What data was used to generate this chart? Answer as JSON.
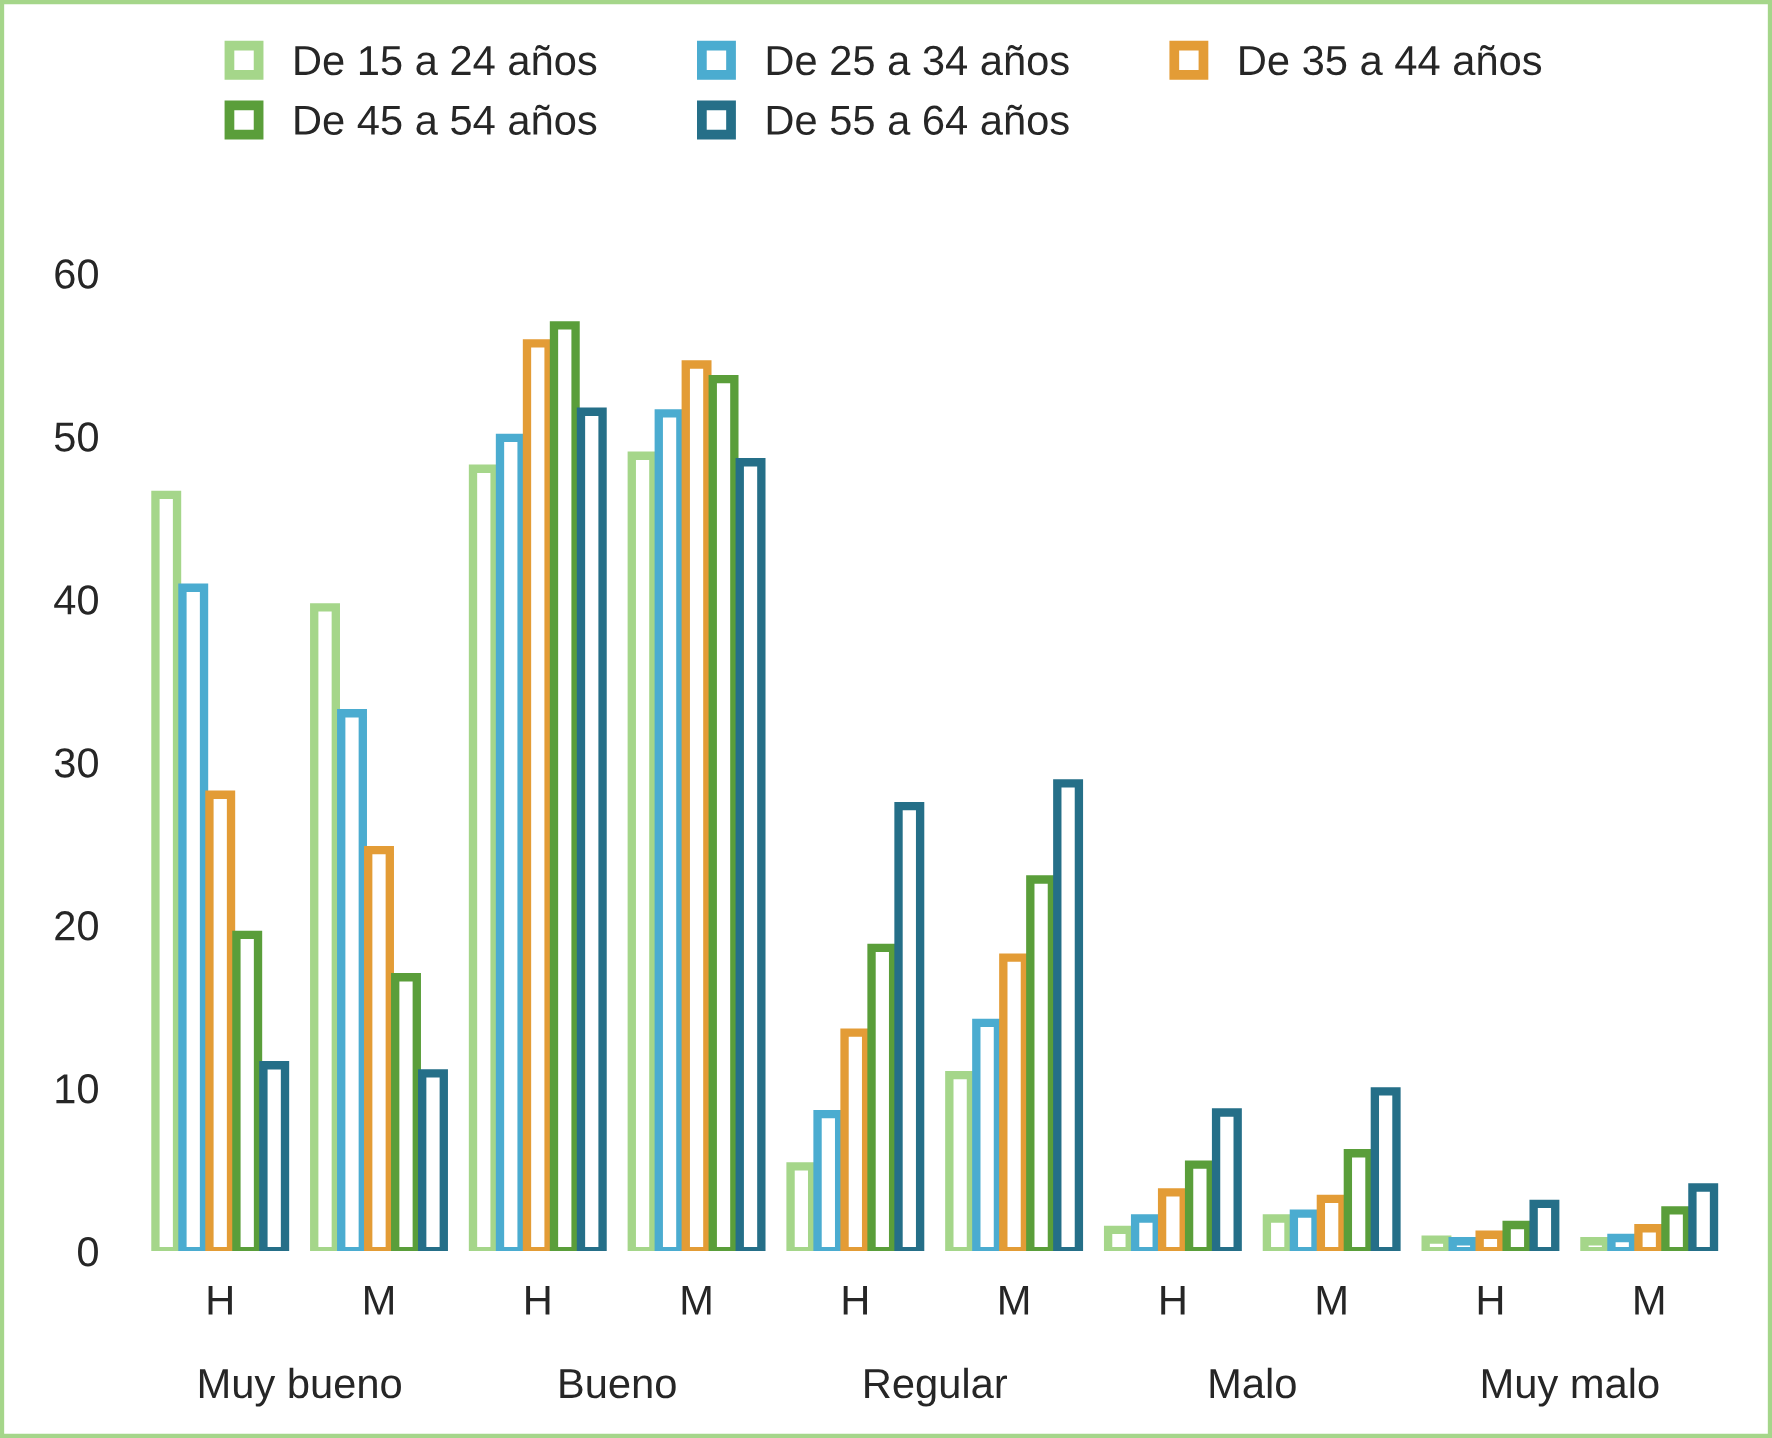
{
  "chart_data": {
    "type": "bar",
    "categories": [
      "H",
      "M",
      "H",
      "M",
      "H",
      "M",
      "H",
      "M",
      "H",
      "M"
    ],
    "series": [
      {
        "name": "De 15 a 24 años",
        "color": "#a5d68a",
        "values": [
          46.4,
          39.5,
          48.0,
          48.8,
          5.2,
          10.8,
          1.3,
          2.0,
          0.7,
          0.6
        ]
      },
      {
        "name": "De 25 a 34 años",
        "color": "#4bacd0",
        "values": [
          40.7,
          33.0,
          49.9,
          51.4,
          8.4,
          14.0,
          2.0,
          2.3,
          0.6,
          0.8
        ]
      },
      {
        "name": "De 35 a 44 años",
        "color": "#e39c36",
        "values": [
          28.0,
          24.6,
          55.7,
          54.4,
          13.4,
          18.0,
          3.6,
          3.2,
          1.0,
          1.4
        ]
      },
      {
        "name": "De 45 a 54 años",
        "color": "#5a9e3a",
        "values": [
          19.4,
          16.8,
          56.8,
          53.5,
          18.6,
          22.8,
          5.3,
          6.0,
          1.6,
          2.5
        ]
      },
      {
        "name": "De 55 a 64 años",
        "color": "#256f88",
        "values": [
          11.4,
          10.9,
          51.5,
          48.4,
          27.3,
          28.7,
          8.5,
          9.8,
          2.9,
          3.9
        ]
      }
    ],
    "annotations": [
      "Muy bueno",
      "Bueno",
      "Regular",
      "Malo",
      "Muy malo"
    ],
    "ylim": [
      0,
      60
    ],
    "yticks": [
      0,
      10,
      20,
      30,
      40,
      50,
      60
    ],
    "grid": false,
    "legend": "top"
  }
}
